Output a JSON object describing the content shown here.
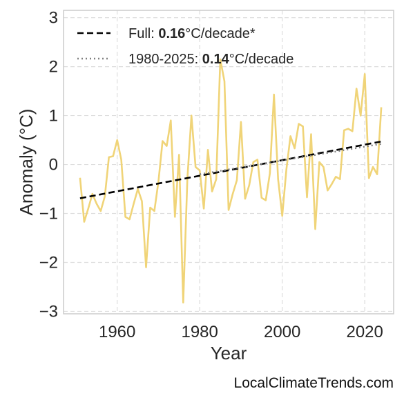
{
  "chart_data": {
    "type": "line",
    "xlabel": "Year",
    "ylabel": "Anomaly (°C)",
    "xlim": [
      1947,
      2027
    ],
    "ylim": [
      -3.05,
      3.15
    ],
    "xticks": [
      1960,
      1980,
      2000,
      2020
    ],
    "yticks": [
      -3,
      -2,
      -1,
      0,
      1,
      2,
      3
    ],
    "ytick_labels": [
      "−3",
      "−2",
      "−1",
      "0",
      "1",
      "2",
      "3"
    ],
    "grid": true,
    "legend_position": "top-left",
    "series": [
      {
        "type": "line",
        "color": "#f0d478",
        "x": [
          1951,
          1952,
          1953,
          1954,
          1955,
          1956,
          1957,
          1958,
          1959,
          1960,
          1961,
          1962,
          1963,
          1964,
          1965,
          1966,
          1967,
          1968,
          1969,
          1970,
          1971,
          1972,
          1973,
          1974,
          1975,
          1976,
          1977,
          1978,
          1979,
          1980,
          1981,
          1982,
          1983,
          1984,
          1985,
          1986,
          1987,
          1988,
          1989,
          1990,
          1991,
          1992,
          1993,
          1994,
          1995,
          1996,
          1997,
          1998,
          1999,
          2000,
          2001,
          2002,
          2003,
          2004,
          2005,
          2006,
          2007,
          2008,
          2009,
          2010,
          2011,
          2012,
          2013,
          2014,
          2015,
          2016,
          2017,
          2018,
          2019,
          2020,
          2021,
          2022,
          2023,
          2024
        ],
        "y": [
          -0.27,
          -1.17,
          -0.9,
          -0.6,
          -0.8,
          -0.95,
          -0.65,
          0.15,
          0.17,
          0.5,
          0.1,
          -1.07,
          -1.12,
          -0.8,
          -0.5,
          -0.75,
          -2.1,
          -0.88,
          -0.95,
          -0.35,
          0.48,
          0.38,
          0.9,
          -1.07,
          0.2,
          -2.82,
          -0.3,
          1.0,
          -0.05,
          -0.12,
          -0.9,
          0.3,
          -0.55,
          -0.3,
          2.15,
          1.7,
          -0.93,
          -0.6,
          -0.32,
          0.87,
          -0.7,
          -0.42,
          0.05,
          0.1,
          -0.68,
          -0.73,
          -0.18,
          1.43,
          -0.3,
          -1.05,
          -0.1,
          0.58,
          0.33,
          0.83,
          0.78,
          -0.67,
          0.62,
          -1.32,
          0.05,
          -0.05,
          -0.53,
          -0.4,
          -0.25,
          -0.3,
          0.7,
          0.73,
          0.68,
          1.55,
          1.0,
          1.85,
          -0.28,
          -0.05,
          -0.2,
          1.17
        ]
      },
      {
        "type": "trend",
        "name": "Full: 0.16°C/decade*",
        "style": "dashed",
        "color": "#000000",
        "x": [
          1951,
          2024
        ],
        "y": [
          -0.69,
          0.47
        ]
      },
      {
        "type": "trend",
        "name": "1980-2025: 0.14°C/decade",
        "style": "dotted",
        "color": "#808080",
        "x": [
          1980,
          2024
        ],
        "y": [
          -0.2,
          0.42
        ]
      }
    ],
    "legend": [
      {
        "prefix": "Full: ",
        "bold": "0.16",
        "suffix": "°C/decade*",
        "style": "dashed",
        "color": "#000000"
      },
      {
        "prefix": "1980-2025: ",
        "bold": "0.14",
        "suffix": "°C/decade",
        "style": "dotted",
        "color": "#808080"
      }
    ]
  },
  "credit": "LocalClimateTrends.com"
}
